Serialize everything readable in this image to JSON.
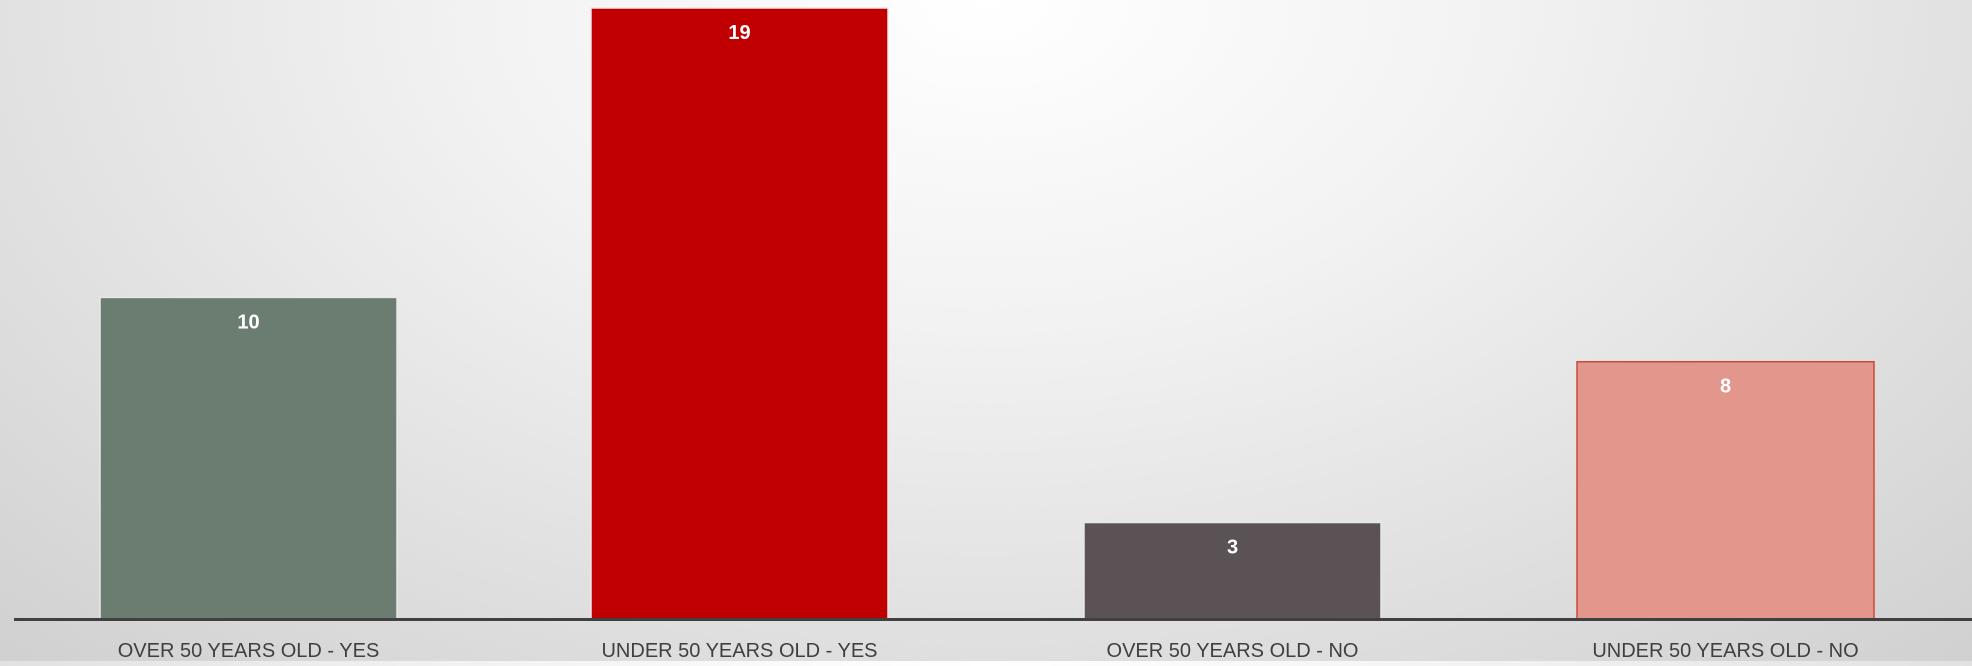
{
  "chart_data": {
    "type": "bar",
    "title": "",
    "xlabel": "",
    "ylabel": "",
    "categories": [
      "OVER 50 YEARS OLD - YES",
      "UNDER 50 YEARS OLD - YES",
      "OVER 50 YEARS OLD - NO",
      "UNDER 50 YEARS OLD - NO"
    ],
    "values": [
      10,
      19,
      3,
      8
    ],
    "colors": [
      "#6b7d71",
      "#c00000",
      "#5a5254",
      "#e3968b"
    ],
    "border_colors": [
      "#e8e8e8",
      "#e8e8e8",
      "#e8e8e8",
      "#c94a3c"
    ],
    "axis_color": "#404040",
    "ylim": [
      0,
      19
    ],
    "grid": false,
    "legend": "none",
    "data_labels": true
  }
}
